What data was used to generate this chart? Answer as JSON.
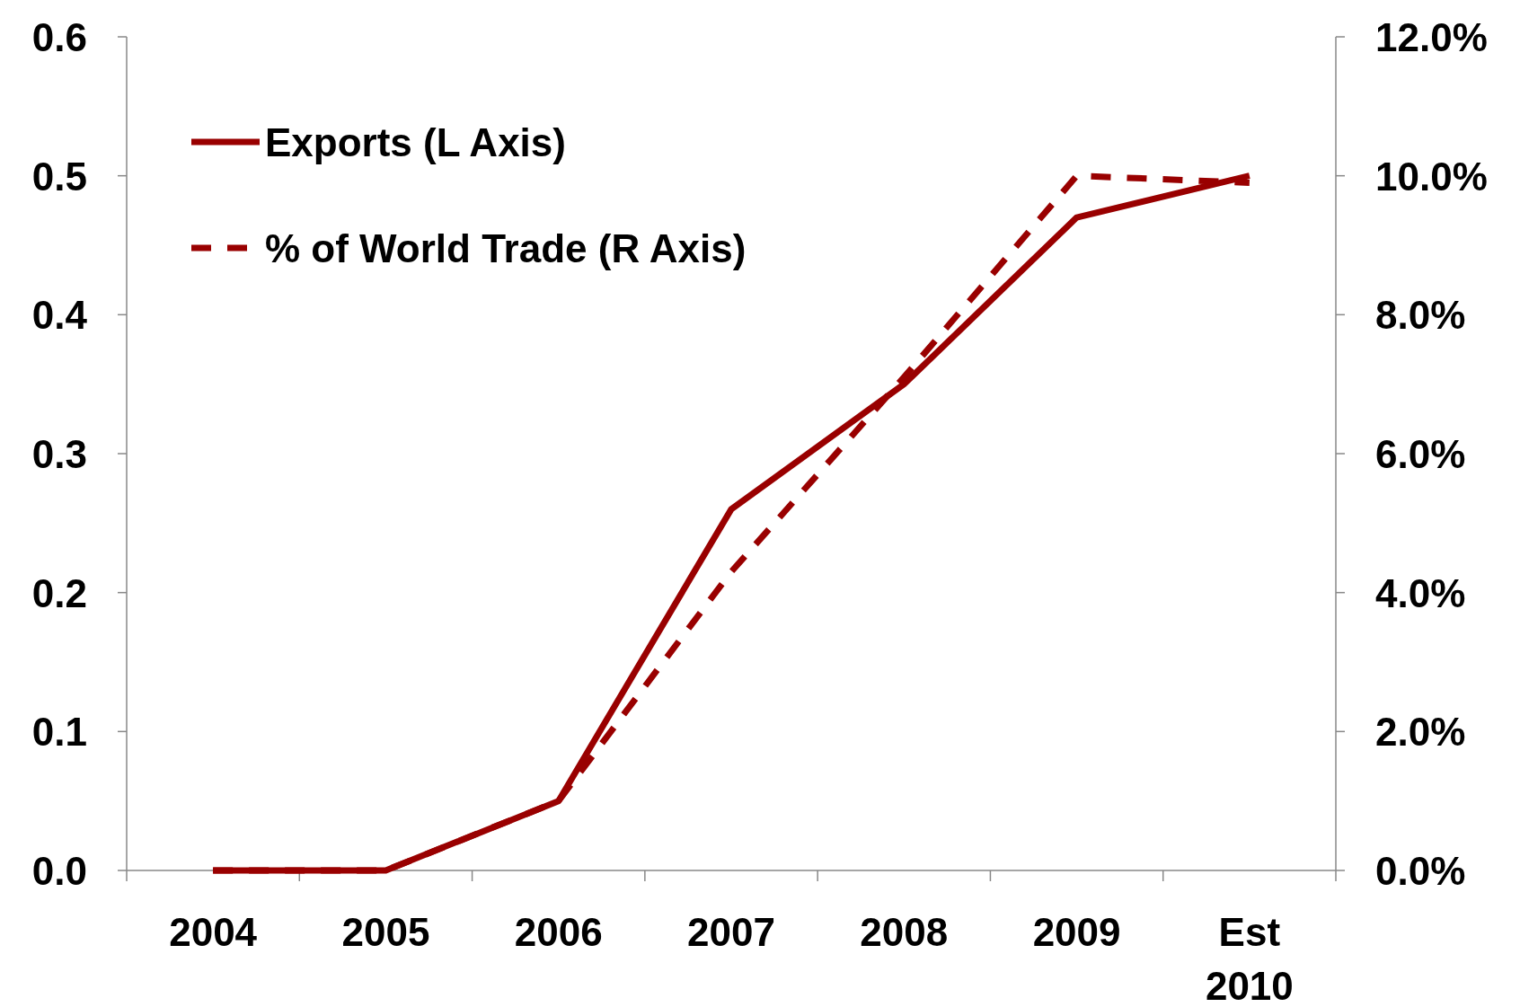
{
  "chart_data": {
    "type": "line",
    "categories": [
      "2004",
      "2005",
      "2006",
      "2007",
      "2008",
      "2009",
      "Est\n2010"
    ],
    "series": [
      {
        "name": "Exports (L Axis)",
        "color": "#990000",
        "values": [
          0,
          0,
          0.05,
          0.26,
          0.35,
          0.47,
          0.5
        ],
        "line_style": "solid"
      },
      {
        "name": "% of World Trade (R Axis)",
        "color": "#990000",
        "values": [
          0,
          0,
          1.0,
          4.3,
          7.1,
          10.0,
          9.9
        ],
        "axis": "y2",
        "line_style": "dashed"
      }
    ],
    "ylim": [
      0,
      0.6
    ],
    "yticks": [
      {
        "value": 0,
        "label": "0.0"
      },
      {
        "value": 0.1,
        "label": "0.1"
      },
      {
        "value": 0.2,
        "label": "0.2"
      },
      {
        "value": 0.3,
        "label": "0.3"
      },
      {
        "value": 0.4,
        "label": "0.4"
      },
      {
        "value": 0.5,
        "label": "0.5"
      },
      {
        "value": 0.6,
        "label": "0.6"
      }
    ],
    "y2lim": [
      0,
      12
    ],
    "y2ticks": [
      {
        "value": 0,
        "label": "0.0%"
      },
      {
        "value": 2,
        "label": "2.0%"
      },
      {
        "value": 4,
        "label": "4.0%"
      },
      {
        "value": 6,
        "label": "6.0%"
      },
      {
        "value": 8,
        "label": "8.0%"
      },
      {
        "value": 10,
        "label": "10.0%"
      },
      {
        "value": 12,
        "label": "12.0%"
      }
    ],
    "legend": "top left",
    "grid": false
  }
}
